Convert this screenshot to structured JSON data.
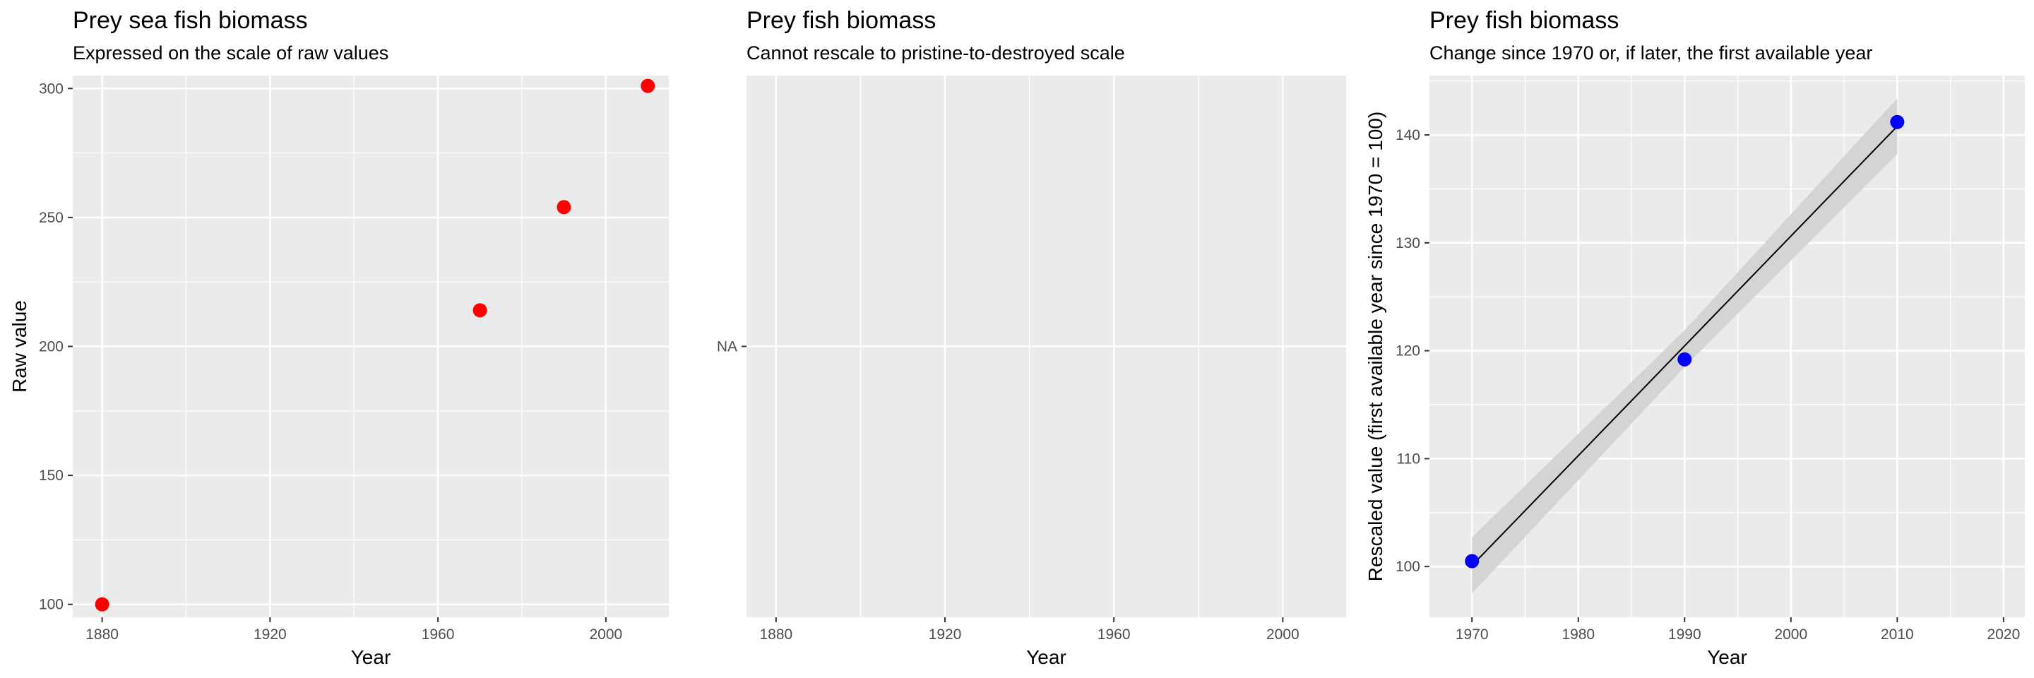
{
  "chart_data": [
    {
      "type": "scatter",
      "title": "Prey sea fish biomass",
      "subtitle": "Expressed on the scale of raw values",
      "xlabel": "Year",
      "ylabel": "Raw value",
      "xlim": [
        1873,
        2015
      ],
      "ylim": [
        95,
        305
      ],
      "xticks": [
        1880,
        1920,
        1960,
        2000
      ],
      "yticks": [
        100,
        150,
        200,
        250,
        300
      ],
      "grid": true,
      "point_color": "#ff0000",
      "series": [
        {
          "x": [
            1880,
            1970,
            1990,
            2010
          ],
          "values": [
            100,
            214,
            254,
            301
          ]
        }
      ]
    },
    {
      "type": "scatter",
      "title": "Prey fish biomass",
      "subtitle": "Cannot rescale to pristine-to-destroyed scale",
      "xlabel": "Year",
      "ylabel": "",
      "xlim": [
        1873,
        2015
      ],
      "ylim": [
        0,
        1
      ],
      "xticks": [
        1880,
        1920,
        1960,
        2000
      ],
      "yticks": [
        "NA"
      ],
      "grid": true,
      "series": []
    },
    {
      "type": "line",
      "title": "Prey fish biomass",
      "subtitle": "Change since 1970 or, if later, the first available year",
      "xlabel": "Year",
      "ylabel": "Rescaled value (first available year since 1970 = 100)",
      "xlim": [
        1966,
        2022
      ],
      "ylim": [
        95.3,
        145.5
      ],
      "xticks": [
        1970,
        1980,
        1990,
        2000,
        2010,
        2020
      ],
      "yticks": [
        100,
        110,
        120,
        130,
        140
      ],
      "grid": true,
      "point_color": "#0000ff",
      "line_color": "#000000",
      "band_color": "#d3d3d3",
      "series": [
        {
          "x": [
            1970,
            1990,
            2010
          ],
          "values": [
            100.5,
            119.2,
            141.2
          ]
        }
      ],
      "fit": {
        "x": [
          1970,
          2010
        ],
        "values": [
          100.1,
          140.8
        ]
      },
      "band": {
        "x": [
          1970,
          1990,
          2010
        ],
        "lower": [
          97.5,
          118.5,
          138.2
        ],
        "upper": [
          102.7,
          121.9,
          143.4
        ]
      }
    }
  ]
}
